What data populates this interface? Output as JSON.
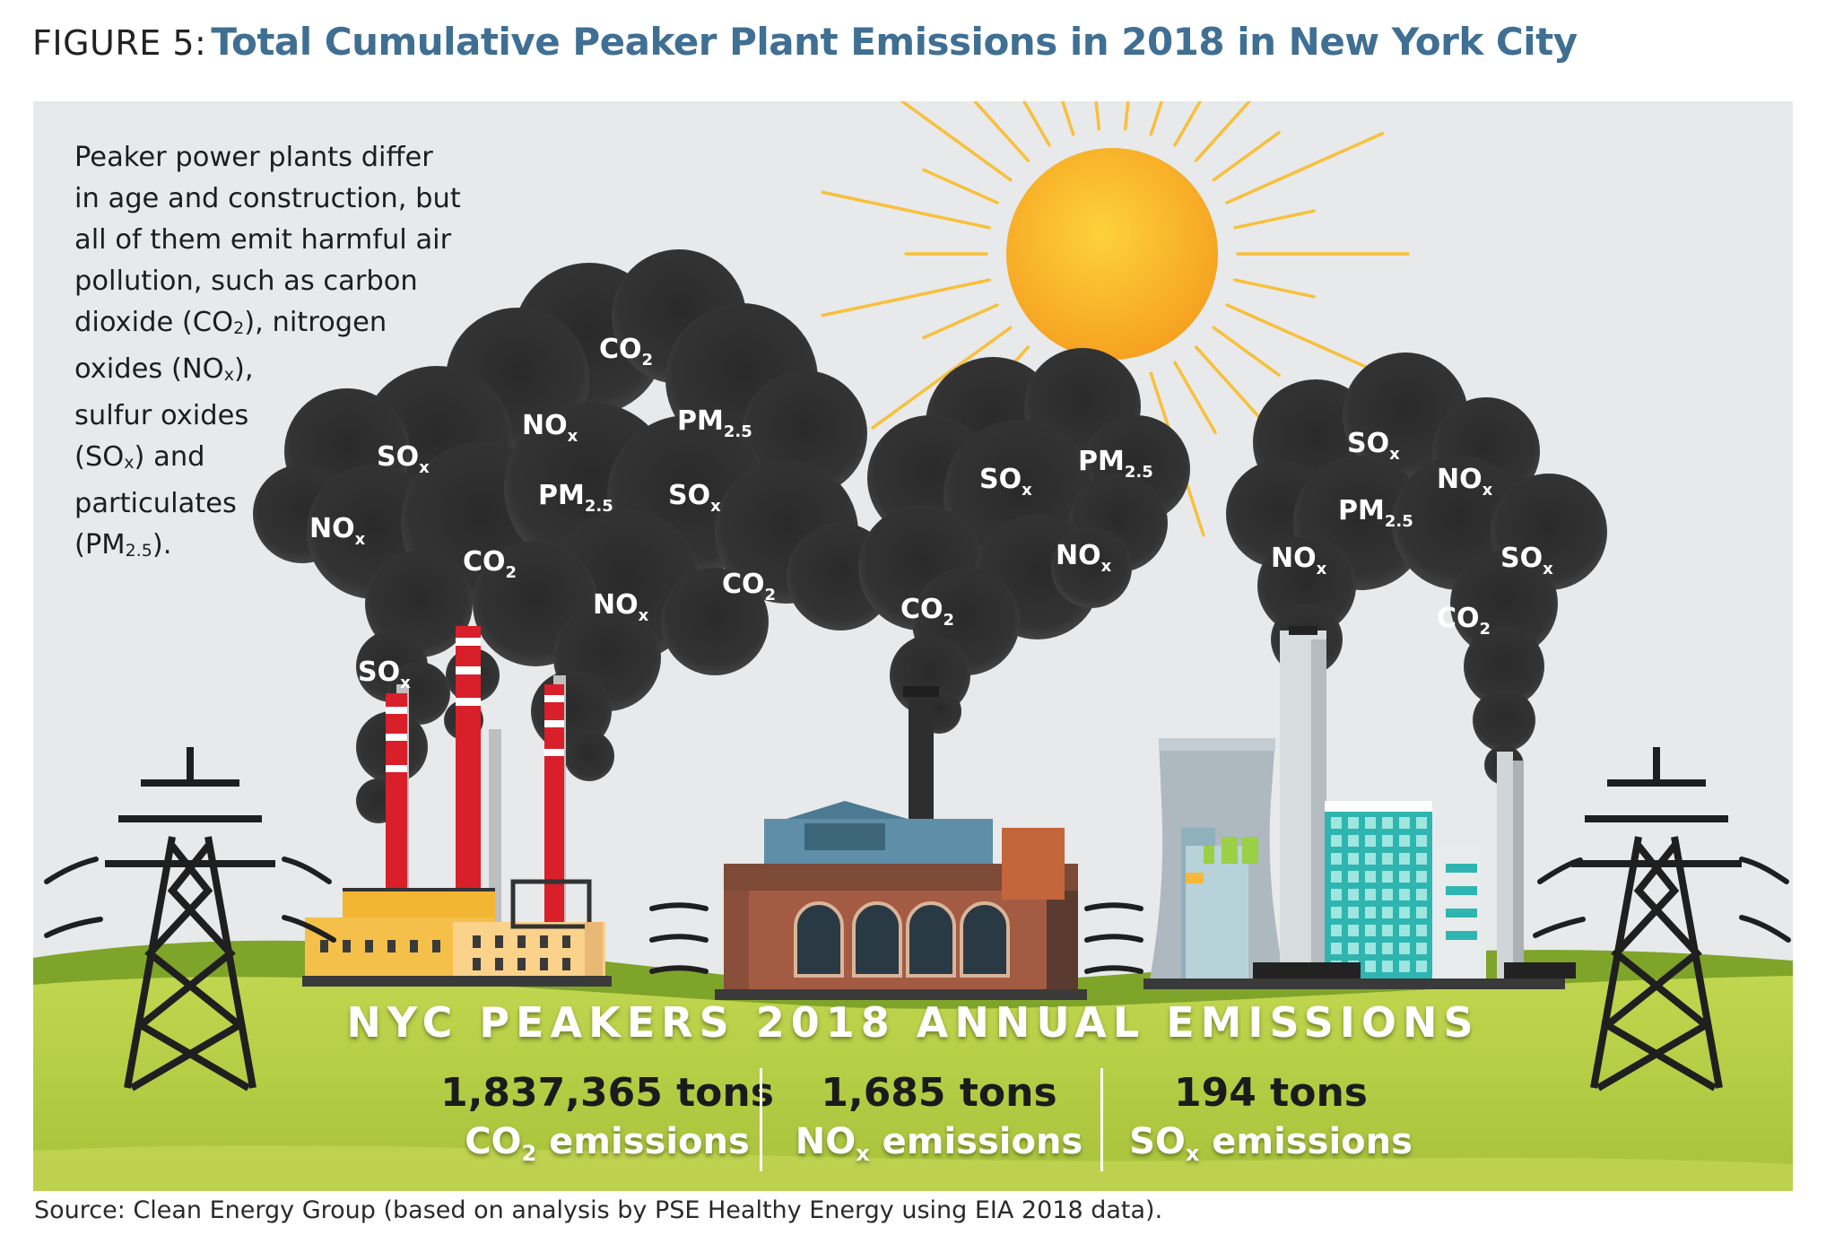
{
  "title": {
    "figure_label": "FIGURE 5:",
    "text": "Total Cumulative Peaker Plant Emissions in 2018 in New York City",
    "color": "#3f6f93"
  },
  "intro_lines": [
    "Peaker power plants differ",
    "in age and construction, but",
    "all of them emit harmful air",
    "pollution, such as carbon"
  ],
  "intro_rich": {
    "l5a": "dioxide (CO",
    "l5s": "2",
    "l5b": "), nitrogen",
    "l6a": "oxides (NO",
    "l6s": "x",
    "l6b": "),",
    "l7": "sulfur oxides",
    "l8a": "(SO",
    "l8s": "x",
    "l8b": ") and",
    "l9": "particulates",
    "l10a": "(PM",
    "l10s": "2.5",
    "l10b": ")."
  },
  "pollutants": {
    "co2": {
      "base": "CO",
      "sub": "2"
    },
    "nox": {
      "base": "NO",
      "sub": "x"
    },
    "sox": {
      "base": "SO",
      "sub": "x"
    },
    "pm": {
      "base": "PM",
      "sub": "2.5"
    }
  },
  "stats": {
    "heading": "NYC PEAKERS 2018 ANNUAL EMISSIONS",
    "co2": {
      "value": "1,837,365 tons",
      "base": "CO",
      "sub": "2",
      "suffix": " emissions"
    },
    "nox": {
      "value": "1,685 tons",
      "base": "NO",
      "sub": "x",
      "suffix": " emissions"
    },
    "sox": {
      "value": "194 tons",
      "base": "SO",
      "sub": "x",
      "suffix": " emissions"
    }
  },
  "source": "Source: Clean Energy Group (based on analysis by PSE Healthy Energy using EIA 2018 data).",
  "colors": {
    "sky": "#e6e8ea",
    "grass": "#a3c43f",
    "grass_dark": "#7ea428",
    "smoke": "#2f2f2f",
    "sun": "#f8b229",
    "chimney_red": "#d81f2a",
    "brick": "#8a4f3b",
    "teal": "#2fb5b0"
  },
  "icons": {
    "sun": "sun-icon",
    "pylon": "transmission-tower-icon",
    "smoke": "smoke-cloud-icon"
  }
}
